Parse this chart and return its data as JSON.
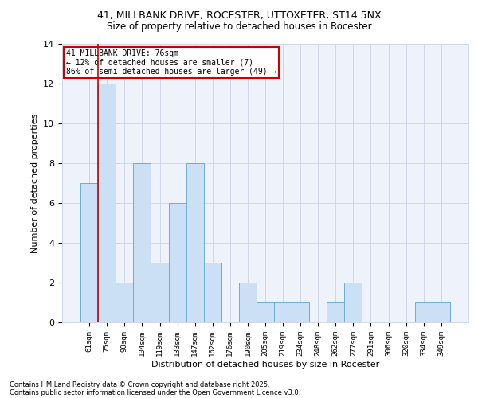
{
  "title": "41, MILLBANK DRIVE, ROCESTER, UTTOXETER, ST14 5NX",
  "subtitle": "Size of property relative to detached houses in Rocester",
  "xlabel": "Distribution of detached houses by size in Rocester",
  "ylabel": "Number of detached properties",
  "bar_labels": [
    "61sqm",
    "75sqm",
    "90sqm",
    "104sqm",
    "119sqm",
    "133sqm",
    "147sqm",
    "162sqm",
    "176sqm",
    "190sqm",
    "205sqm",
    "219sqm",
    "234sqm",
    "248sqm",
    "262sqm",
    "277sqm",
    "291sqm",
    "306sqm",
    "320sqm",
    "334sqm",
    "349sqm"
  ],
  "bar_values": [
    7,
    12,
    2,
    8,
    3,
    6,
    8,
    3,
    0,
    2,
    1,
    1,
    1,
    0,
    1,
    2,
    0,
    0,
    0,
    1,
    1
  ],
  "bar_color": "#cce0f5",
  "bar_edgecolor": "#6aaed6",
  "vline_x": 0.5,
  "vline_color": "#cc0000",
  "annotation_title": "41 MILLBANK DRIVE: 76sqm",
  "annotation_line1": "← 12% of detached houses are smaller (7)",
  "annotation_line2": "86% of semi-detached houses are larger (49) →",
  "annotation_box_color": "#cc0000",
  "ylim": [
    0,
    14
  ],
  "yticks": [
    0,
    2,
    4,
    6,
    8,
    10,
    12,
    14
  ],
  "grid_color": "#d0d8e8",
  "bg_color": "#eef2fa",
  "footnote1": "Contains HM Land Registry data © Crown copyright and database right 2025.",
  "footnote2": "Contains public sector information licensed under the Open Government Licence v3.0."
}
